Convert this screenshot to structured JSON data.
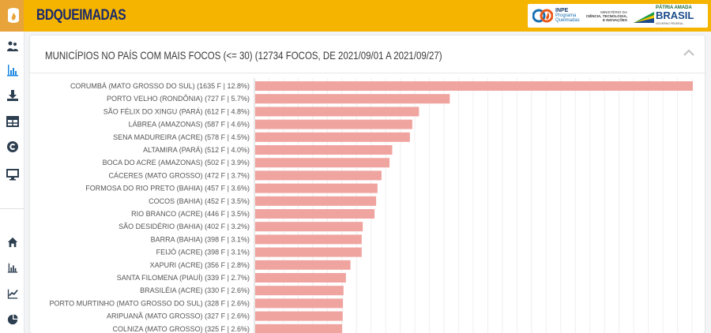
{
  "header": {
    "app_title": "BDQUEIMADAS",
    "inpe": {
      "name": "INPE",
      "line1": "Programa",
      "line2": "Queimadas"
    },
    "ministry": {
      "line1": "MINISTÉRIO DA",
      "line2": "CIÊNCIA, TECNOLOGIA,",
      "line3": "E INOVAÇÕES"
    },
    "brasil": {
      "line1": "PÁTRIA AMADA",
      "line2": "BRASIL",
      "line3": "GOVERNO FEDERAL"
    }
  },
  "sidebar": {
    "items": [
      {
        "icon": "people-map-icon"
      },
      {
        "icon": "bar-chart-icon",
        "active": true
      },
      {
        "icon": "download-icon"
      },
      {
        "icon": "table-icon"
      },
      {
        "icon": "copyright-icon"
      },
      {
        "icon": "monitor-icon"
      },
      {
        "icon": "home-icon"
      },
      {
        "icon": "bar-chart-small-icon"
      },
      {
        "icon": "line-chart-icon"
      },
      {
        "icon": "pie-chart-icon"
      }
    ]
  },
  "panel": {
    "title": "MUNICÍPIOS NO PAÍS COM MAIS FOCOS (<= 30) (12734 FOCOS, DE 2021/09/01 A 2021/09/27)"
  },
  "colors": {
    "bar": "#f0a4a0",
    "accent": "#f5b400",
    "title_text": "#1a2a6c"
  },
  "chart_data": {
    "type": "bar",
    "orientation": "horizontal",
    "categories": [
      "CORUMBÁ (MATO GROSSO DO SUL) (1635 F | 12.8%)",
      "PORTO VELHO (RONDÔNIA) (727 F | 5.7%)",
      "SÃO FÉLIX DO XINGU (PARÁ) (612 F | 4.8%)",
      "LÁBREA (AMAZONAS) (587 F | 4.6%)",
      "SENA MADUREIRA (ACRE) (578 F | 4.5%)",
      "ALTAMIRA (PARÁ) (512 F | 4.0%)",
      "BOCA DO ACRE (AMAZONAS) (502 F | 3.9%)",
      "CÁCERES (MATO GROSSO) (472 F | 3.7%)",
      "FORMOSA DO RIO PRETO (BAHIA) (457 F | 3.6%)",
      "COCOS (BAHIA) (452 F | 3.5%)",
      "RIO BRANCO (ACRE) (446 F | 3.5%)",
      "SÃO DESIDÉRIO (BAHIA) (402 F | 3.2%)",
      "BARRA (BAHIA) (398 F | 3.1%)",
      "FEIJÓ (ACRE) (398 F | 3.1%)",
      "XAPURI (ACRE) (356 F | 2.8%)",
      "SANTA FILOMENA (PIAUÍ) (339 F | 2.7%)",
      "BRASILÉIA (ACRE) (330 F | 2.6%)",
      "PORTO MURTINHO (MATO GROSSO DO SUL) (328 F | 2.6%)",
      "ARIPUANÃ (MATO GROSSO) (327 F | 2.6%)",
      "COLNIZA (MATO GROSSO) (325 F | 2.6%)"
    ],
    "values": [
      1635,
      727,
      612,
      587,
      578,
      512,
      502,
      472,
      457,
      452,
      446,
      402,
      398,
      398,
      356,
      339,
      330,
      328,
      327,
      325
    ],
    "xlim": [
      0,
      1635
    ],
    "grid": true
  }
}
